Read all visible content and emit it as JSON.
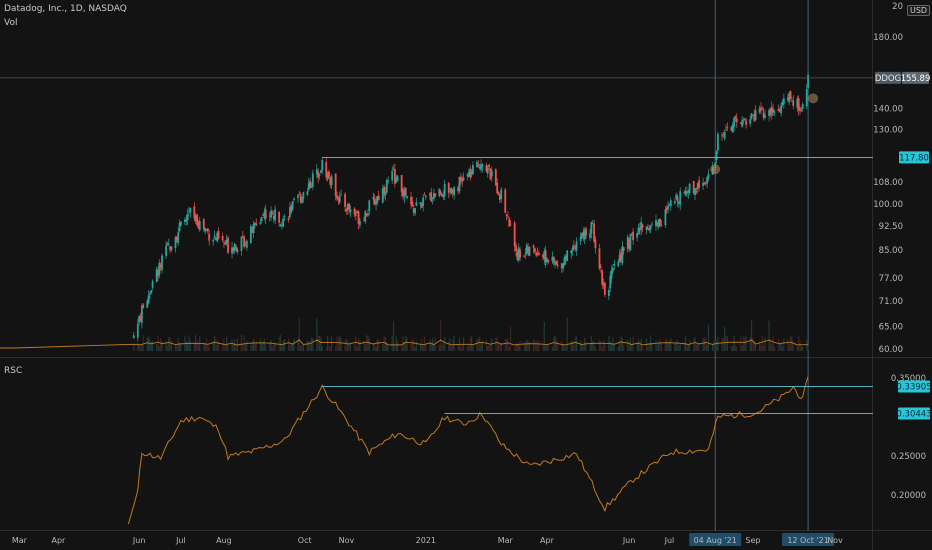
{
  "header": {
    "symbol_line": "Datadog, Inc., 1D, NASDAQ",
    "volume_label": "Vol",
    "currency": "USD",
    "price_tag_symbol": "DDOG",
    "price_tag_value": "155.89",
    "level_tag_value": "117.80"
  },
  "indicator": {
    "name": "RSC",
    "level_upper": "0.33905",
    "level_lower": "0.30443"
  },
  "colors": {
    "background": "#131313",
    "up": "#26a69a",
    "down": "#ef5350",
    "rsc_line": "#c27a1e",
    "volume_line": "#c27a1e",
    "level_line": "#5fc6dd",
    "crosshair": "#3f7d9c",
    "highlight_tag": "#26c6da"
  },
  "chart_data": [
    {
      "type": "candlestick",
      "title": "Datadog, Inc., 1D, NASDAQ",
      "y_scale": "log",
      "y_ticks": [
        "60.00",
        "65.00",
        "71.00",
        "77.00",
        "85.00",
        "92.50",
        "100.00",
        "108.00",
        "117.80",
        "130.00",
        "140.00",
        "155.89",
        "180.00",
        "20"
      ],
      "x_ticks": [
        "Mar",
        "Apr",
        "Jun",
        "Jul",
        "Aug",
        "Oct",
        "Nov",
        "2021",
        "Mar",
        "Apr",
        "Jun",
        "Jul",
        "04 Aug '21",
        "Sep",
        "12 Oct '21",
        "Nov"
      ],
      "x_ticks_highlighted": [
        "04 Aug '21",
        "12 Oct '21"
      ],
      "approx_close_path": [
        {
          "date": "2020-05-29",
          "close": 63
        },
        {
          "date": "2020-06-10",
          "close": 74
        },
        {
          "date": "2020-06-25",
          "close": 87
        },
        {
          "date": "2020-07-10",
          "close": 97
        },
        {
          "date": "2020-07-24",
          "close": 90
        },
        {
          "date": "2020-08-07",
          "close": 86
        },
        {
          "date": "2020-08-20",
          "close": 88
        },
        {
          "date": "2020-09-03",
          "close": 97
        },
        {
          "date": "2020-09-18",
          "close": 95
        },
        {
          "date": "2020-10-06",
          "close": 107
        },
        {
          "date": "2020-10-16",
          "close": 115
        },
        {
          "date": "2020-10-30",
          "close": 101
        },
        {
          "date": "2020-11-13",
          "close": 95
        },
        {
          "date": "2020-11-27",
          "close": 103
        },
        {
          "date": "2020-12-08",
          "close": 111
        },
        {
          "date": "2020-12-22",
          "close": 98
        },
        {
          "date": "2021-01-08",
          "close": 104
        },
        {
          "date": "2021-01-22",
          "close": 106
        },
        {
          "date": "2021-02-05",
          "close": 112
        },
        {
          "date": "2021-02-12",
          "close": 117
        },
        {
          "date": "2021-02-26",
          "close": 103
        },
        {
          "date": "2021-03-10",
          "close": 84
        },
        {
          "date": "2021-03-24",
          "close": 85
        },
        {
          "date": "2021-04-09",
          "close": 80
        },
        {
          "date": "2021-04-23",
          "close": 88
        },
        {
          "date": "2021-05-05",
          "close": 92
        },
        {
          "date": "2021-05-14",
          "close": 73
        },
        {
          "date": "2021-05-27",
          "close": 85
        },
        {
          "date": "2021-06-10",
          "close": 92
        },
        {
          "date": "2021-06-24",
          "close": 94
        },
        {
          "date": "2021-07-09",
          "close": 104
        },
        {
          "date": "2021-07-23",
          "close": 107
        },
        {
          "date": "2021-08-04",
          "close": 113
        },
        {
          "date": "2021-08-06",
          "close": 128
        },
        {
          "date": "2021-08-20",
          "close": 133
        },
        {
          "date": "2021-09-03",
          "close": 137
        },
        {
          "date": "2021-09-17",
          "close": 138
        },
        {
          "date": "2021-09-29",
          "close": 145
        },
        {
          "date": "2021-10-08",
          "close": 139
        },
        {
          "date": "2021-10-12",
          "close": 155.89
        }
      ],
      "horizontal_levels": [
        117.8,
        155.89
      ]
    },
    {
      "type": "line",
      "title": "RSC",
      "y_ticks": [
        "0.20000",
        "0.25000",
        "0.30443",
        "0.33905",
        "0.35000"
      ],
      "levels": [
        0.33905,
        0.30443
      ],
      "approx_path": [
        {
          "date": "2020-05-25",
          "value": 0.163
        },
        {
          "date": "2020-06-01",
          "value": 0.205
        },
        {
          "date": "2020-06-04",
          "value": 0.255
        },
        {
          "date": "2020-06-18",
          "value": 0.247
        },
        {
          "date": "2020-07-03",
          "value": 0.295
        },
        {
          "date": "2020-07-17",
          "value": 0.3
        },
        {
          "date": "2020-07-31",
          "value": 0.285
        },
        {
          "date": "2020-08-07",
          "value": 0.249
        },
        {
          "date": "2020-08-28",
          "value": 0.257
        },
        {
          "date": "2020-09-18",
          "value": 0.27
        },
        {
          "date": "2020-10-02",
          "value": 0.305
        },
        {
          "date": "2020-10-16",
          "value": 0.338
        },
        {
          "date": "2020-10-30",
          "value": 0.306
        },
        {
          "date": "2020-11-20",
          "value": 0.255
        },
        {
          "date": "2020-12-11",
          "value": 0.279
        },
        {
          "date": "2021-01-01",
          "value": 0.265
        },
        {
          "date": "2021-01-15",
          "value": 0.3
        },
        {
          "date": "2021-01-29",
          "value": 0.291
        },
        {
          "date": "2021-02-12",
          "value": 0.304
        },
        {
          "date": "2021-02-26",
          "value": 0.265
        },
        {
          "date": "2021-03-19",
          "value": 0.237
        },
        {
          "date": "2021-04-02",
          "value": 0.243
        },
        {
          "date": "2021-04-23",
          "value": 0.253
        },
        {
          "date": "2021-05-14",
          "value": 0.183
        },
        {
          "date": "2021-06-04",
          "value": 0.22
        },
        {
          "date": "2021-07-02",
          "value": 0.255
        },
        {
          "date": "2021-07-30",
          "value": 0.258
        },
        {
          "date": "2021-08-06",
          "value": 0.3
        },
        {
          "date": "2021-09-03",
          "value": 0.305
        },
        {
          "date": "2021-09-24",
          "value": 0.327
        },
        {
          "date": "2021-10-01",
          "value": 0.338
        },
        {
          "date": "2021-10-08",
          "value": 0.322
        },
        {
          "date": "2021-10-12",
          "value": 0.352
        }
      ]
    }
  ]
}
